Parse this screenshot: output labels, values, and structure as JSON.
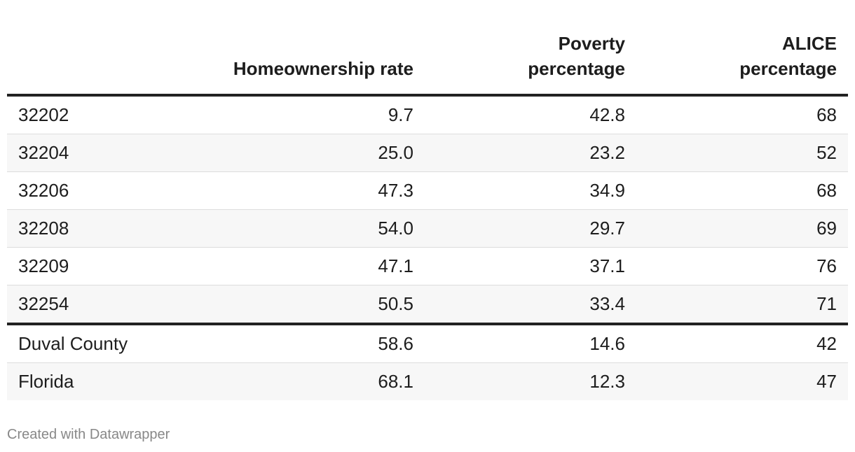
{
  "chart_data": {
    "type": "table",
    "columns": [
      "",
      "Homeownership rate",
      "Poverty percentage",
      "ALICE percentage"
    ],
    "header_lines": [
      [
        ""
      ],
      [
        "Homeownership rate"
      ],
      [
        "Poverty",
        "percentage"
      ],
      [
        "ALICE",
        "percentage"
      ]
    ],
    "rows": [
      [
        "32202",
        "9.7",
        "42.8",
        "68"
      ],
      [
        "32204",
        "25.0",
        "23.2",
        "52"
      ],
      [
        "32206",
        "47.3",
        "34.9",
        "68"
      ],
      [
        "32208",
        "54.0",
        "29.7",
        "69"
      ],
      [
        "32209",
        "47.1",
        "37.1",
        "76"
      ],
      [
        "32254",
        "50.5",
        "33.4",
        "71"
      ],
      [
        "Duval County",
        "58.6",
        "14.6",
        "42"
      ],
      [
        "Florida",
        "68.1",
        "12.3",
        "47"
      ]
    ],
    "divider_after_row": 5
  },
  "footer": {
    "credit": "Created with Datawrapper"
  }
}
